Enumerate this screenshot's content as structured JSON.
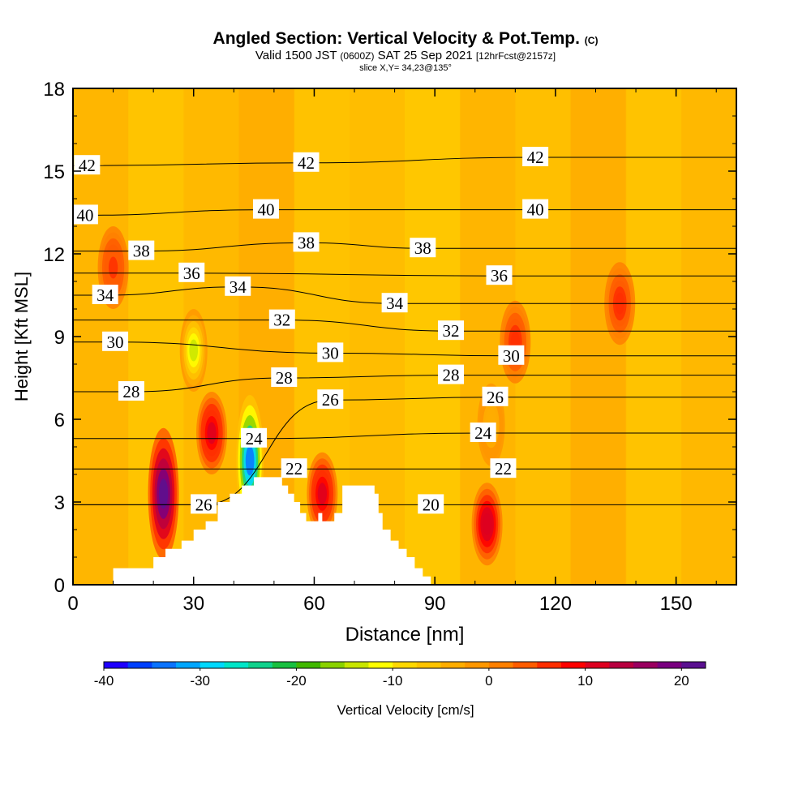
{
  "title": {
    "main": "Angled Section: Vertical Velocity & Pot.Temp.",
    "unit": "(C)"
  },
  "subtitle": {
    "valid": "Valid 1500 JST",
    "z": "(0600Z)",
    "date": "SAT 25 Sep 2021",
    "fcst": "[12hrFcst@2157z]"
  },
  "slice_label": "slice X,Y= 34,23@135°",
  "chart_data": {
    "type": "contour",
    "xlabel": "Distance [nm]",
    "ylabel": "Height [Kft MSL]",
    "xlim": [
      0,
      165
    ],
    "ylim": [
      0,
      18
    ],
    "x_ticks": [
      "0",
      "30",
      "60",
      "90",
      "120",
      "150"
    ],
    "y_ticks": [
      "0",
      "3",
      "6",
      "9",
      "12",
      "15",
      "18"
    ],
    "colorbar": {
      "label": "Vertical Velocity [cm/s]",
      "range": [
        -40,
        22.5
      ],
      "ticks": [
        "-40",
        "-30",
        "-20",
        "-10",
        "0",
        "10",
        "20"
      ],
      "colors": [
        "#1f00ff",
        "#0040ff",
        "#0a73ff",
        "#00a6ff",
        "#00d9ff",
        "#00e6c8",
        "#10d28c",
        "#18c040",
        "#40b800",
        "#8ad200",
        "#c8e600",
        "#ffff00",
        "#ffd800",
        "#ffc400",
        "#ffad00",
        "#ff9700",
        "#ff8000",
        "#ff5c00",
        "#ff2e00",
        "#ff0000",
        "#dd0020",
        "#b80040",
        "#9a0060",
        "#7a0080",
        "#5a1090"
      ]
    },
    "isentrope_labels": [
      {
        "x": 3.5,
        "y": 15.2,
        "text": "42"
      },
      {
        "x": 58,
        "y": 15.3,
        "text": "42"
      },
      {
        "x": 115,
        "y": 15.5,
        "text": "42"
      },
      {
        "x": 3,
        "y": 13.4,
        "text": "40"
      },
      {
        "x": 48,
        "y": 13.6,
        "text": "40"
      },
      {
        "x": 115,
        "y": 13.6,
        "text": "40"
      },
      {
        "x": 17,
        "y": 12.1,
        "text": "38"
      },
      {
        "x": 58,
        "y": 12.4,
        "text": "38"
      },
      {
        "x": 87,
        "y": 12.2,
        "text": "38"
      },
      {
        "x": 29.5,
        "y": 11.3,
        "text": "36"
      },
      {
        "x": 106,
        "y": 11.2,
        "text": "36"
      },
      {
        "x": 8,
        "y": 10.5,
        "text": "34"
      },
      {
        "x": 41,
        "y": 10.8,
        "text": "34"
      },
      {
        "x": 80,
        "y": 10.2,
        "text": "34"
      },
      {
        "x": 52,
        "y": 9.6,
        "text": "32"
      },
      {
        "x": 94,
        "y": 9.2,
        "text": "32"
      },
      {
        "x": 10.5,
        "y": 8.8,
        "text": "30"
      },
      {
        "x": 64,
        "y": 8.4,
        "text": "30"
      },
      {
        "x": 109,
        "y": 8.3,
        "text": "30"
      },
      {
        "x": 14.5,
        "y": 7.0,
        "text": "28"
      },
      {
        "x": 52.5,
        "y": 7.5,
        "text": "28"
      },
      {
        "x": 94,
        "y": 7.6,
        "text": "28"
      },
      {
        "x": 64,
        "y": 6.7,
        "text": "26"
      },
      {
        "x": 32.5,
        "y": 2.9,
        "text": "26"
      },
      {
        "x": 105,
        "y": 6.8,
        "text": "26"
      },
      {
        "x": 45,
        "y": 5.3,
        "text": "24"
      },
      {
        "x": 102,
        "y": 5.5,
        "text": "24"
      },
      {
        "x": 55,
        "y": 4.2,
        "text": "22"
      },
      {
        "x": 107,
        "y": 4.2,
        "text": "22"
      },
      {
        "x": 89,
        "y": 2.9,
        "text": "20"
      }
    ],
    "vertical_velocity_features": [
      {
        "x": 22.5,
        "y": 3.3,
        "value": 22
      },
      {
        "x": 34.5,
        "y": 5.5,
        "value": 10
      },
      {
        "x": 44,
        "y": 4.5,
        "value": -35
      },
      {
        "x": 30,
        "y": 8.5,
        "value": -14
      },
      {
        "x": 62,
        "y": 3.3,
        "value": 10
      },
      {
        "x": 103,
        "y": 2.2,
        "value": 12
      },
      {
        "x": 104,
        "y": 5.8,
        "value": -5
      },
      {
        "x": 110,
        "y": 8.8,
        "value": 7
      },
      {
        "x": 136,
        "y": 10.2,
        "value": 7
      },
      {
        "x": 10,
        "y": 11.5,
        "value": 5
      }
    ],
    "terrain": [
      [
        0,
        0
      ],
      [
        10,
        0
      ],
      [
        10,
        0.6
      ],
      [
        20,
        0.6
      ],
      [
        20,
        1
      ],
      [
        23,
        1
      ],
      [
        23,
        1.3
      ],
      [
        27,
        1.3
      ],
      [
        27,
        1.6
      ],
      [
        30,
        1.6
      ],
      [
        30,
        2
      ],
      [
        33,
        2
      ],
      [
        33,
        2.3
      ],
      [
        36,
        2.3
      ],
      [
        36,
        3
      ],
      [
        39,
        3
      ],
      [
        39,
        3.3
      ],
      [
        42,
        3.3
      ],
      [
        42,
        3.6
      ],
      [
        45,
        3.6
      ],
      [
        45,
        3.9
      ],
      [
        52,
        3.9
      ],
      [
        52,
        3.6
      ],
      [
        53.5,
        3.6
      ],
      [
        53.5,
        3.3
      ],
      [
        55,
        3.3
      ],
      [
        55,
        3
      ],
      [
        56.5,
        3
      ],
      [
        56.5,
        2.6
      ],
      [
        58,
        2.6
      ],
      [
        58,
        2.3
      ],
      [
        61,
        2.3
      ],
      [
        61,
        2.6
      ],
      [
        62,
        2.6
      ],
      [
        62,
        2.3
      ],
      [
        65,
        2.3
      ],
      [
        65,
        2.6
      ],
      [
        67,
        2.6
      ],
      [
        67,
        3.6
      ],
      [
        75,
        3.6
      ],
      [
        75,
        3.3
      ],
      [
        76,
        3.3
      ],
      [
        76,
        2.6
      ],
      [
        77,
        2.6
      ],
      [
        77,
        2
      ],
      [
        79,
        2
      ],
      [
        79,
        1.6
      ],
      [
        81,
        1.6
      ],
      [
        81,
        1.3
      ],
      [
        83,
        1.3
      ],
      [
        83,
        1
      ],
      [
        85,
        1
      ],
      [
        85,
        0.6
      ],
      [
        87,
        0.6
      ],
      [
        87,
        0.3
      ],
      [
        89,
        0.3
      ],
      [
        89,
        0
      ],
      [
        165,
        0
      ]
    ]
  }
}
